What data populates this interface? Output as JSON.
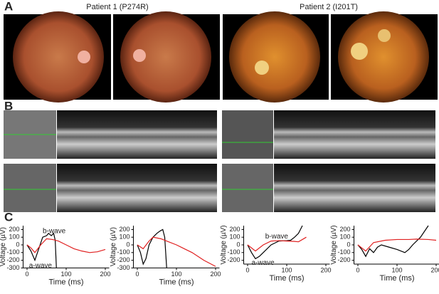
{
  "panels": [
    "A",
    "B",
    "C"
  ],
  "titles": [
    "Patient 1 (P274R)",
    "Patient 2 (I201T)"
  ],
  "chart_data": [
    {
      "type": "line",
      "xlabel": "Time (ms)",
      "ylabel": "Voltage (µV)",
      "xlim": [
        -10,
        210
      ],
      "xticks": [
        0,
        100,
        200
      ],
      "ylim": [
        -300,
        250
      ],
      "yticks": [
        -300,
        -200,
        -100,
        0,
        100,
        200
      ],
      "series": [
        {
          "color": "#000000",
          "x": [
            0,
            10,
            20,
            30,
            40,
            50,
            55,
            62,
            68,
            72,
            75
          ],
          "values": [
            0,
            -80,
            -200,
            -50,
            100,
            120,
            150,
            120,
            150,
            60,
            -300
          ]
        },
        {
          "color": "#e02020",
          "x": [
            0,
            10,
            20,
            35,
            50,
            65,
            80,
            100,
            120,
            140,
            160,
            180,
            200
          ],
          "values": [
            0,
            -40,
            -100,
            0,
            80,
            70,
            50,
            0,
            -50,
            -80,
            -100,
            -90,
            -60
          ]
        }
      ],
      "annotations": [
        {
          "text": "b-wave",
          "x": 40,
          "y": 175
        },
        {
          "text": "a-wave",
          "x": 5,
          "y": -270
        }
      ]
    },
    {
      "type": "line",
      "xlabel": "Time (ms)",
      "ylabel": "Voltage (µV)",
      "xlim": [
        -10,
        210
      ],
      "xticks": [
        0,
        100,
        200
      ],
      "ylim": [
        -300,
        250
      ],
      "yticks": [
        -300,
        -200,
        -100,
        0,
        100,
        200
      ],
      "series": [
        {
          "color": "#000000",
          "x": [
            0,
            8,
            15,
            22,
            30,
            40,
            50,
            58,
            65,
            70,
            75
          ],
          "values": [
            0,
            -100,
            -250,
            -180,
            0,
            100,
            150,
            180,
            200,
            100,
            -300
          ]
        },
        {
          "color": "#e02020",
          "x": [
            0,
            15,
            30,
            40,
            60,
            80,
            100,
            120,
            140,
            170,
            200
          ],
          "values": [
            0,
            -50,
            50,
            100,
            80,
            40,
            0,
            -50,
            -100,
            -200,
            -280
          ]
        }
      ],
      "annotations": []
    },
    {
      "type": "line",
      "xlabel": "Time (ms)",
      "ylabel": "Voltage (µV)",
      "xlim": [
        -10,
        210
      ],
      "xticks": [
        0,
        100,
        200
      ],
      "ylim": [
        -250,
        250
      ],
      "yticks": [
        -200,
        -100,
        0,
        100,
        200
      ],
      "series": [
        {
          "color": "#000000",
          "x": [
            0,
            10,
            20,
            30,
            40,
            60,
            80,
            100,
            110,
            120,
            130,
            140
          ],
          "values": [
            0,
            -100,
            -180,
            -150,
            -100,
            0,
            50,
            55,
            60,
            100,
            150,
            250
          ]
        },
        {
          "color": "#e02020",
          "x": [
            0,
            20,
            40,
            60,
            80,
            100,
            120,
            130,
            140,
            150
          ],
          "values": [
            0,
            -80,
            0,
            50,
            55,
            50,
            45,
            40,
            70,
            100
          ]
        }
      ],
      "annotations": [
        {
          "text": "b-wave",
          "x": 45,
          "y": 110
        },
        {
          "text": "a-wave",
          "x": 10,
          "y": -235
        }
      ]
    },
    {
      "type": "line",
      "xlabel": "Time (ms)",
      "ylabel": "Voltage (µV)",
      "xlim": [
        -10,
        210
      ],
      "xticks": [
        0,
        100,
        200
      ],
      "ylim": [
        -250,
        250
      ],
      "yticks": [
        -200,
        -100,
        0,
        100,
        200
      ],
      "series": [
        {
          "color": "#000000",
          "x": [
            0,
            10,
            20,
            30,
            40,
            50,
            60,
            80,
            100,
            120,
            130,
            140,
            160,
            180
          ],
          "values": [
            0,
            -60,
            -150,
            -50,
            -100,
            -30,
            0,
            -30,
            -60,
            -100,
            -60,
            0,
            100,
            250
          ]
        },
        {
          "color": "#e02020",
          "x": [
            0,
            10,
            20,
            40,
            70,
            100,
            130,
            150,
            180,
            200
          ],
          "values": [
            0,
            -40,
            -80,
            30,
            60,
            70,
            70,
            75,
            70,
            60
          ]
        }
      ],
      "annotations": []
    }
  ]
}
